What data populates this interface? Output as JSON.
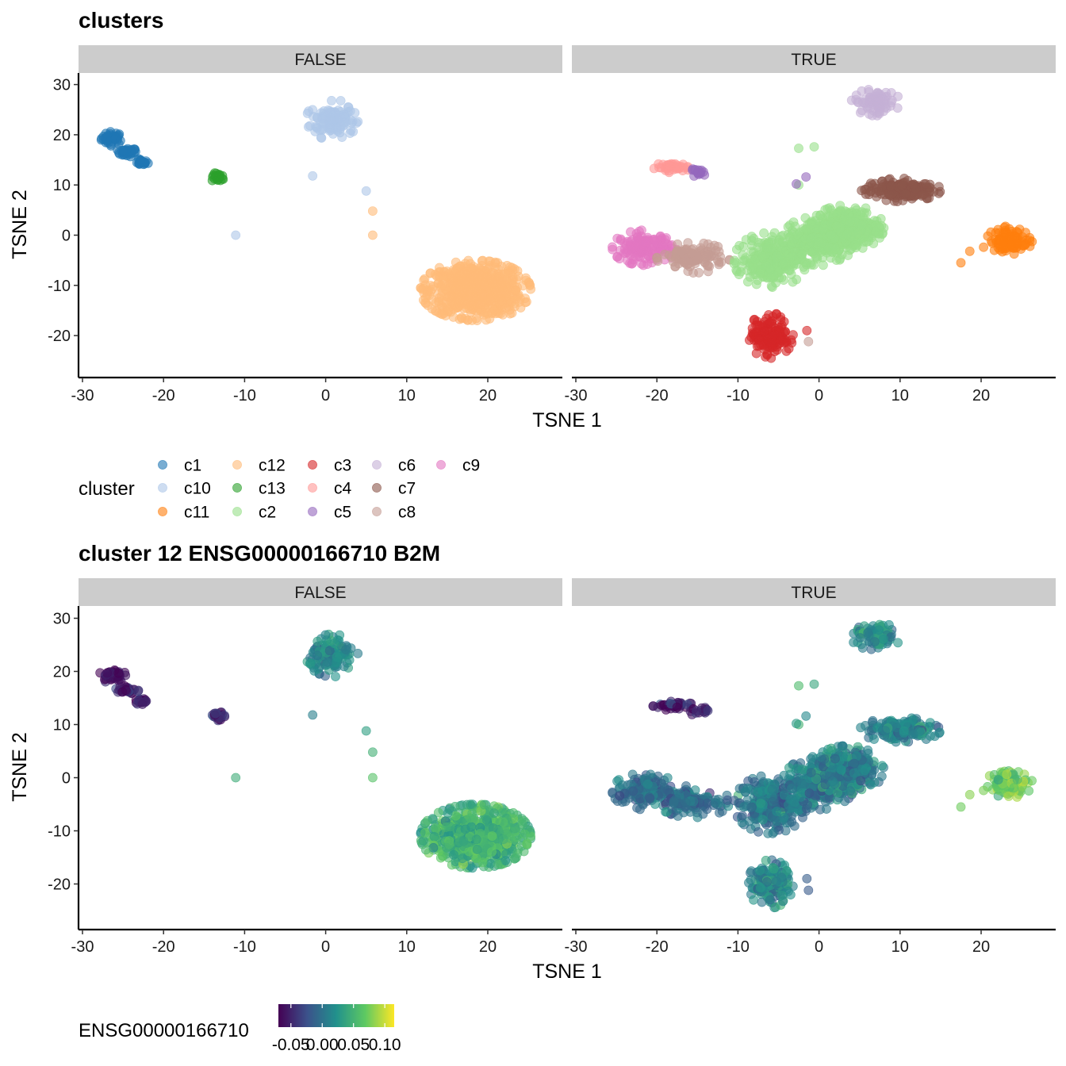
{
  "plots": [
    {
      "title": "clusters",
      "facets": [
        "FALSE",
        "TRUE"
      ],
      "xlabel": "TSNE 1",
      "ylabel": "TSNE 2",
      "legend": {
        "title": "cluster",
        "items": [
          {
            "label": "c1",
            "color": "#1f77b4"
          },
          {
            "label": "c10",
            "color": "#aec7e8"
          },
          {
            "label": "c11",
            "color": "#ff7f0e"
          },
          {
            "label": "c12",
            "color": "#ffbb78"
          },
          {
            "label": "c13",
            "color": "#2ca02c"
          },
          {
            "label": "c2",
            "color": "#98df8a"
          },
          {
            "label": "c3",
            "color": "#d62728"
          },
          {
            "label": "c4",
            "color": "#ff9896"
          },
          {
            "label": "c5",
            "color": "#9467bd"
          },
          {
            "label": "c6",
            "color": "#c5b0d5"
          },
          {
            "label": "c7",
            "color": "#8c564b"
          },
          {
            "label": "c8",
            "color": "#c49c94"
          },
          {
            "label": "c9",
            "color": "#e377c2"
          }
        ]
      }
    },
    {
      "title": "cluster 12 ENSG00000166710 B2M",
      "facets": [
        "FALSE",
        "TRUE"
      ],
      "xlabel": "TSNE 1",
      "ylabel": "TSNE 2",
      "legend": {
        "title": "ENSG00000166710",
        "colorbar": [
          "#440154",
          "#3b528b",
          "#21918c",
          "#5ec962",
          "#fde725"
        ],
        "ticks": [
          "-0.05",
          "0.00",
          "0.05",
          "0.10"
        ],
        "range": [
          -0.07,
          0.115
        ]
      }
    }
  ],
  "chart_data": [
    {
      "type": "scatter",
      "title": "clusters",
      "facet_var_levels": [
        "FALSE",
        "TRUE"
      ],
      "xlabel": "TSNE 1",
      "ylabel": "TSNE 2",
      "xlim": [
        -31,
        29
      ],
      "ylim": [
        -28,
        32
      ],
      "xticks": [
        -30,
        -20,
        -10,
        0,
        10,
        20
      ],
      "yticks": [
        -20,
        -10,
        0,
        10,
        20,
        30
      ],
      "grid": false,
      "legend_position": "bottom",
      "color_by": "cluster",
      "groups": [
        {
          "facet": "FALSE",
          "cluster": "c1",
          "shape": "ellipse",
          "cx": -26.3,
          "cy": 19.3,
          "rx": 1.6,
          "ry": 1.5,
          "n": 40
        },
        {
          "facet": "FALSE",
          "cluster": "c1",
          "shape": "ellipse",
          "cx": -24.5,
          "cy": 16.5,
          "rx": 1.4,
          "ry": 1.0,
          "n": 30
        },
        {
          "facet": "FALSE",
          "cluster": "c1",
          "shape": "ellipse",
          "cx": -22.8,
          "cy": 14.5,
          "rx": 1.0,
          "ry": 0.7,
          "n": 20
        },
        {
          "facet": "FALSE",
          "cluster": "c13",
          "shape": "ellipse",
          "cx": -13.2,
          "cy": 11.5,
          "rx": 1.0,
          "ry": 1.0,
          "n": 22
        },
        {
          "facet": "FALSE",
          "cluster": "c10",
          "shape": "ellipse",
          "cx": 0.8,
          "cy": 23.0,
          "rx": 3.2,
          "ry": 4.0,
          "n": 120
        },
        {
          "facet": "FALSE",
          "cluster": "c10",
          "shape": "points",
          "pts": [
            [
              -1.6,
              11.8
            ],
            [
              -11.1,
              0.0
            ],
            [
              5.0,
              8.8
            ]
          ],
          "n": 3
        },
        {
          "facet": "FALSE",
          "cluster": "c12",
          "shape": "points",
          "pts": [
            [
              5.8,
              4.8
            ],
            [
              5.8,
              0.0
            ]
          ],
          "n": 2
        },
        {
          "facet": "FALSE",
          "cluster": "c12",
          "shape": "ellipse",
          "cx": 18.5,
          "cy": -11.0,
          "rx": 6.8,
          "ry": 6.0,
          "n": 700
        },
        {
          "facet": "TRUE",
          "cluster": "c6",
          "shape": "ellipse",
          "cx": 7.0,
          "cy": 26.5,
          "rx": 3.0,
          "ry": 2.7,
          "n": 80
        },
        {
          "facet": "TRUE",
          "cluster": "c4",
          "shape": "ellipse",
          "cx": -18.0,
          "cy": 13.5,
          "rx": 2.5,
          "ry": 1.0,
          "n": 40
        },
        {
          "facet": "TRUE",
          "cluster": "c5",
          "shape": "ellipse",
          "cx": -14.8,
          "cy": 12.5,
          "rx": 1.4,
          "ry": 0.8,
          "n": 15
        },
        {
          "facet": "TRUE",
          "cluster": "c2",
          "shape": "points",
          "pts": [
            [
              -2.5,
              17.3
            ],
            [
              -0.6,
              17.6
            ],
            [
              -2.5,
              10.0
            ]
          ],
          "n": 3
        },
        {
          "facet": "TRUE",
          "cluster": "c5",
          "shape": "points",
          "pts": [
            [
              -1.6,
              11.6
            ],
            [
              -2.8,
              10.2
            ]
          ],
          "n": 2
        },
        {
          "facet": "TRUE",
          "cluster": "c9",
          "shape": "ellipse",
          "cx": -21.5,
          "cy": -2.5,
          "rx": 4.0,
          "ry": 3.5,
          "n": 140
        },
        {
          "facet": "TRUE",
          "cluster": "c8",
          "shape": "ellipse",
          "cx": -15.5,
          "cy": -4.5,
          "rx": 4.5,
          "ry": 3.0,
          "n": 120
        },
        {
          "facet": "TRUE",
          "cluster": "c2",
          "shape": "ellipse",
          "cx": -6.0,
          "cy": -5.0,
          "rx": 4.5,
          "ry": 5.5,
          "n": 250
        },
        {
          "facet": "TRUE",
          "cluster": "c2",
          "shape": "ellipse",
          "cx": 0.0,
          "cy": -1.0,
          "rx": 4.5,
          "ry": 5.0,
          "n": 250
        },
        {
          "facet": "TRUE",
          "cluster": "c2",
          "shape": "ellipse",
          "cx": 3.5,
          "cy": 1.5,
          "rx": 4.5,
          "ry": 4.5,
          "n": 300
        },
        {
          "facet": "TRUE",
          "cluster": "c7",
          "shape": "ellipse",
          "cx": 10.0,
          "cy": 9.0,
          "rx": 5.0,
          "ry": 2.3,
          "n": 180
        },
        {
          "facet": "TRUE",
          "cluster": "c3",
          "shape": "ellipse",
          "cx": -6.0,
          "cy": -20.0,
          "rx": 2.8,
          "ry": 4.5,
          "n": 150
        },
        {
          "facet": "TRUE",
          "cluster": "c3",
          "shape": "points",
          "pts": [
            [
              -1.5,
              -19.0
            ]
          ],
          "n": 1
        },
        {
          "facet": "TRUE",
          "cluster": "c8",
          "shape": "points",
          "pts": [
            [
              -1.3,
              -21.2
            ]
          ],
          "n": 1
        },
        {
          "facet": "TRUE",
          "cluster": "c11",
          "shape": "ellipse",
          "cx": 23.5,
          "cy": -1.0,
          "rx": 2.8,
          "ry": 2.8,
          "n": 100
        },
        {
          "facet": "TRUE",
          "cluster": "c11",
          "shape": "points",
          "pts": [
            [
              17.5,
              -5.5
            ],
            [
              18.6,
              -3.2
            ],
            [
              20.3,
              -2.4
            ]
          ],
          "n": 3
        }
      ]
    },
    {
      "type": "scatter",
      "title": "cluster 12 ENSG00000166710 B2M",
      "facet_var_levels": [
        "FALSE",
        "TRUE"
      ],
      "xlabel": "TSNE 1",
      "ylabel": "TSNE 2",
      "xlim": [
        -31,
        29
      ],
      "ylim": [
        -28,
        32
      ],
      "xticks": [
        -30,
        -20,
        -10,
        0,
        10,
        20
      ],
      "yticks": [
        -20,
        -10,
        0,
        10,
        20,
        30
      ],
      "grid": false,
      "legend_position": "bottom",
      "color_by": "ENSG00000166710",
      "color_scale": "viridis",
      "color_range": [
        -0.07,
        0.115
      ],
      "groups": [
        {
          "facet": "FALSE",
          "shape": "ellipse",
          "cx": -26.3,
          "cy": 19.3,
          "rx": 1.6,
          "ry": 1.5,
          "n": 40,
          "value": -0.065
        },
        {
          "facet": "FALSE",
          "shape": "ellipse",
          "cx": -24.5,
          "cy": 16.5,
          "rx": 1.4,
          "ry": 1.0,
          "n": 30,
          "value": -0.055
        },
        {
          "facet": "FALSE",
          "shape": "ellipse",
          "cx": -22.8,
          "cy": 14.5,
          "rx": 1.0,
          "ry": 0.7,
          "n": 20,
          "value": -0.055
        },
        {
          "facet": "FALSE",
          "shape": "ellipse",
          "cx": -13.2,
          "cy": 11.5,
          "rx": 1.0,
          "ry": 1.0,
          "n": 22,
          "value": -0.05
        },
        {
          "facet": "FALSE",
          "shape": "ellipse",
          "cx": 0.8,
          "cy": 23.0,
          "rx": 3.2,
          "ry": 4.0,
          "n": 120,
          "value": 0.015
        },
        {
          "facet": "FALSE",
          "shape": "points",
          "pts": [
            [
              -1.6,
              11.8
            ],
            [
              -11.1,
              0.0
            ],
            [
              5.0,
              8.8
            ]
          ],
          "n": 3,
          "value": 0.02
        },
        {
          "facet": "FALSE",
          "shape": "points",
          "pts": [
            [
              5.8,
              4.8
            ],
            [
              5.8,
              0.0
            ]
          ],
          "n": 2,
          "value": 0.05
        },
        {
          "facet": "FALSE",
          "shape": "ellipse",
          "cx": 18.5,
          "cy": -11.0,
          "rx": 6.8,
          "ry": 6.0,
          "n": 700,
          "value": 0.05
        },
        {
          "facet": "TRUE",
          "shape": "ellipse",
          "cx": 7.0,
          "cy": 26.5,
          "rx": 3.0,
          "ry": 2.7,
          "n": 80,
          "value": 0.02
        },
        {
          "facet": "TRUE",
          "shape": "ellipse",
          "cx": -18.0,
          "cy": 13.5,
          "rx": 2.5,
          "ry": 1.0,
          "n": 40,
          "value": -0.06
        },
        {
          "facet": "TRUE",
          "shape": "ellipse",
          "cx": -14.8,
          "cy": 12.5,
          "rx": 1.4,
          "ry": 0.8,
          "n": 15,
          "value": -0.055
        },
        {
          "facet": "TRUE",
          "shape": "points",
          "pts": [
            [
              -2.5,
              17.3
            ],
            [
              -0.6,
              17.6
            ],
            [
              -2.5,
              10.0
            ],
            [
              -1.6,
              11.6
            ],
            [
              -2.8,
              10.2
            ]
          ],
          "n": 5,
          "value": 0.045
        },
        {
          "facet": "TRUE",
          "shape": "ellipse",
          "cx": -21.5,
          "cy": -2.5,
          "rx": 4.0,
          "ry": 3.5,
          "n": 140,
          "value": 0.0
        },
        {
          "facet": "TRUE",
          "shape": "ellipse",
          "cx": -15.5,
          "cy": -4.5,
          "rx": 4.5,
          "ry": 3.0,
          "n": 120,
          "value": -0.005
        },
        {
          "facet": "TRUE",
          "shape": "ellipse",
          "cx": -6.0,
          "cy": -5.0,
          "rx": 4.5,
          "ry": 5.5,
          "n": 250,
          "value": 0.0
        },
        {
          "facet": "TRUE",
          "shape": "ellipse",
          "cx": 0.0,
          "cy": -1.0,
          "rx": 4.5,
          "ry": 5.0,
          "n": 250,
          "value": 0.005
        },
        {
          "facet": "TRUE",
          "shape": "ellipse",
          "cx": 3.5,
          "cy": 1.5,
          "rx": 4.5,
          "ry": 4.5,
          "n": 300,
          "value": 0.01
        },
        {
          "facet": "TRUE",
          "shape": "ellipse",
          "cx": 10.0,
          "cy": 9.0,
          "rx": 5.0,
          "ry": 2.3,
          "n": 180,
          "value": 0.01
        },
        {
          "facet": "TRUE",
          "shape": "ellipse",
          "cx": -6.0,
          "cy": -20.0,
          "rx": 2.8,
          "ry": 4.5,
          "n": 150,
          "value": 0.015
        },
        {
          "facet": "TRUE",
          "shape": "points",
          "pts": [
            [
              -1.5,
              -19.0
            ],
            [
              -1.3,
              -21.2
            ]
          ],
          "n": 2,
          "value": -0.01
        },
        {
          "facet": "TRUE",
          "shape": "ellipse",
          "cx": 23.5,
          "cy": -1.0,
          "rx": 2.8,
          "ry": 2.8,
          "n": 100,
          "value": 0.07
        },
        {
          "facet": "TRUE",
          "shape": "points",
          "pts": [
            [
              17.5,
              -5.5
            ],
            [
              18.6,
              -3.2
            ],
            [
              20.3,
              -2.4
            ]
          ],
          "n": 3,
          "value": 0.06
        }
      ]
    }
  ]
}
